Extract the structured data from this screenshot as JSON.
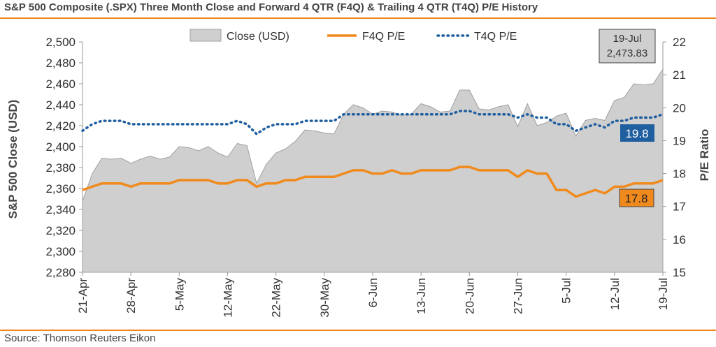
{
  "title": "S&P 500 Composite (.SPX) Three Month Close and Forward 4 QTR (F4Q) & Trailing 4 QTR (T4Q) P/E History",
  "source": "Source: Thomson Reuters Eikon",
  "colors": {
    "close_fill": "#cfcfcf",
    "close_stroke": "#a0a0a0",
    "f4q": "#f08a1c",
    "t4q": "#1f5fa0",
    "accent_rule": "#f08a1c"
  },
  "chart_data": {
    "type": "area",
    "ylabel": "S&P 500 Close (USD)",
    "y2label": "P/E Ratio",
    "ylim": [
      2280,
      2500
    ],
    "y2lim": [
      15,
      22
    ],
    "yticks": [
      "2,280",
      "2,300",
      "2,320",
      "2,340",
      "2,360",
      "2,380",
      "2,400",
      "2,420",
      "2,440",
      "2,460",
      "2,480",
      "2,500"
    ],
    "y2ticks": [
      "15",
      "16",
      "17",
      "18",
      "19",
      "20",
      "21",
      "22"
    ],
    "xticks": [
      "21-Apr",
      "28-Apr",
      "5-May",
      "12-May",
      "22-May",
      "30-May",
      "6-Jun",
      "13-Jun",
      "20-Jun",
      "27-Jun",
      "5-Jul",
      "12-Jul",
      "19-Jul"
    ],
    "legend": [
      "Close (USD)",
      "F4Q P/E",
      "T4Q P/E"
    ],
    "legend_position": "top",
    "series": [
      {
        "name": "Close (USD)",
        "axis": "left",
        "values": [
          2348,
          2374,
          2389,
          2388,
          2389,
          2384,
          2388,
          2391,
          2388,
          2390,
          2400,
          2399,
          2396,
          2400,
          2394,
          2390,
          2403,
          2401,
          2365,
          2383,
          2394,
          2398,
          2405,
          2416,
          2415,
          2413,
          2412,
          2431,
          2440,
          2437,
          2431,
          2434,
          2433,
          2430,
          2431,
          2441,
          2438,
          2433,
          2434,
          2454,
          2454,
          2436,
          2435,
          2438,
          2440,
          2419,
          2441,
          2420,
          2423,
          2429,
          2432,
          2410,
          2425,
          2427,
          2425,
          2444,
          2447,
          2460,
          2459,
          2460,
          2474
        ]
      },
      {
        "name": "F4Q P/E",
        "axis": "right",
        "values": [
          17.5,
          17.6,
          17.7,
          17.7,
          17.7,
          17.6,
          17.7,
          17.7,
          17.7,
          17.7,
          17.8,
          17.8,
          17.8,
          17.8,
          17.7,
          17.7,
          17.8,
          17.8,
          17.6,
          17.7,
          17.7,
          17.8,
          17.8,
          17.9,
          17.9,
          17.9,
          17.9,
          18.0,
          18.1,
          18.1,
          18.0,
          18.0,
          18.1,
          18.0,
          18.0,
          18.1,
          18.1,
          18.1,
          18.1,
          18.2,
          18.2,
          18.1,
          18.1,
          18.1,
          18.1,
          17.9,
          18.1,
          18.0,
          18.0,
          17.5,
          17.5,
          17.3,
          17.4,
          17.5,
          17.4,
          17.6,
          17.6,
          17.7,
          17.7,
          17.7,
          17.8
        ]
      },
      {
        "name": "T4Q P/E",
        "axis": "right",
        "values": [
          19.3,
          19.5,
          19.6,
          19.6,
          19.6,
          19.5,
          19.5,
          19.5,
          19.5,
          19.5,
          19.5,
          19.5,
          19.5,
          19.5,
          19.5,
          19.5,
          19.6,
          19.5,
          19.2,
          19.4,
          19.5,
          19.5,
          19.5,
          19.6,
          19.6,
          19.6,
          19.6,
          19.8,
          19.8,
          19.8,
          19.8,
          19.8,
          19.8,
          19.8,
          19.8,
          19.8,
          19.8,
          19.8,
          19.8,
          19.9,
          19.9,
          19.8,
          19.8,
          19.8,
          19.8,
          19.7,
          19.8,
          19.7,
          19.7,
          19.5,
          19.5,
          19.3,
          19.4,
          19.5,
          19.4,
          19.6,
          19.6,
          19.7,
          19.7,
          19.7,
          19.8
        ]
      }
    ],
    "annotations": {
      "close_date": "19-Jul",
      "close_value": "2,473.83",
      "t4q_last": "19.8",
      "f4q_last": "17.8"
    }
  }
}
